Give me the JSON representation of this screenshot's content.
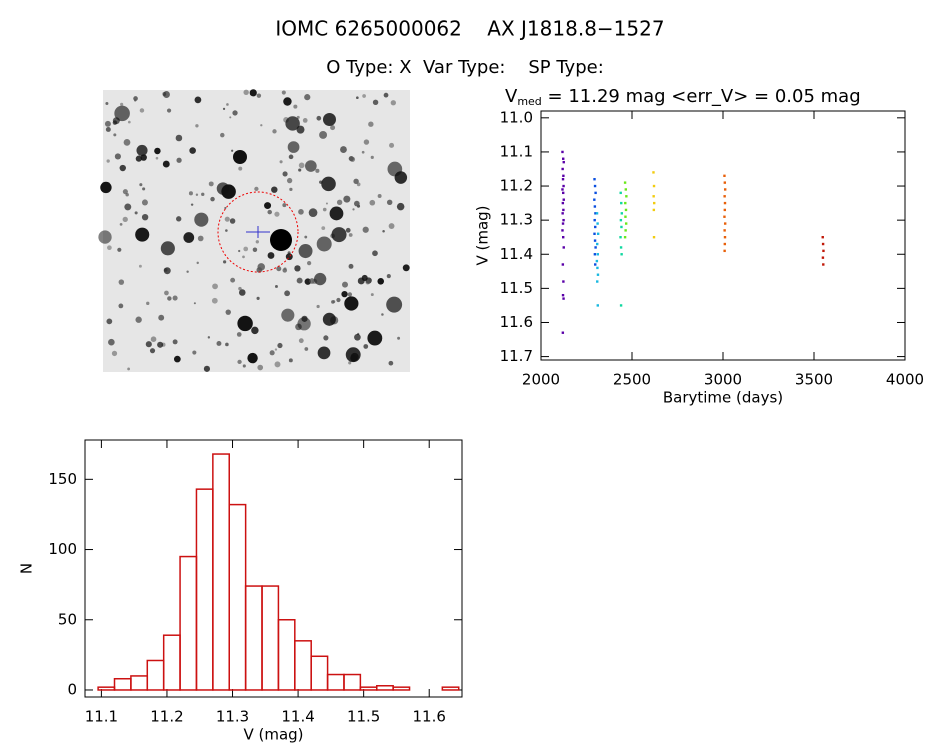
{
  "header": {
    "title": "IOMC 6265000062    AX J1818.8−1527",
    "subtitle": "O Type: X  Var Type:    SP Type:"
  },
  "chart_data": [
    {
      "type": "scatter",
      "title_parts": [
        "V",
        "med",
        " = 11.29 mag <err_V> = 0.05 mag"
      ],
      "xlabel": "Barytime (days)",
      "ylabel": "V (mag)",
      "xlim": [
        2000,
        4000
      ],
      "xticks": [
        2000,
        2500,
        3000,
        3500,
        4000
      ],
      "ylim": [
        11.71,
        10.98
      ],
      "yticks": [
        {
          "value": 11.0,
          "label": "11.0"
        },
        11.1,
        11.2,
        11.3,
        11.4,
        11.5,
        11.6,
        11.7
      ],
      "series": [
        {
          "color": "#5a00a8",
          "x": [
            2118,
            2122,
            2125,
            2119,
            2123,
            2121,
            2124,
            2118,
            2122,
            2125,
            2120,
            2123,
            2119,
            2124,
            2121,
            2118,
            2122,
            2125,
            2120,
            2123,
            2121,
            2124,
            2120
          ],
          "values": [
            11.1,
            11.12,
            11.13,
            11.15,
            11.17,
            11.18,
            11.2,
            11.21,
            11.22,
            11.24,
            11.25,
            11.27,
            11.28,
            11.3,
            11.31,
            11.33,
            11.35,
            11.38,
            11.43,
            11.48,
            11.52,
            11.53,
            11.63
          ]
        },
        {
          "color": "#0a4fe0",
          "x": [
            2294,
            2297,
            2300,
            2293,
            2296,
            2299,
            2295,
            2298,
            2294,
            2297,
            2300,
            2296,
            2298
          ],
          "values": [
            11.18,
            11.2,
            11.22,
            11.24,
            11.26,
            11.28,
            11.3,
            11.32,
            11.34,
            11.36,
            11.38,
            11.4,
            11.43
          ]
        },
        {
          "color": "#18b8e0",
          "x": [
            2308,
            2311,
            2314,
            2309,
            2312,
            2307,
            2310,
            2313,
            2309,
            2312
          ],
          "values": [
            11.28,
            11.31,
            11.34,
            11.37,
            11.4,
            11.42,
            11.44,
            11.46,
            11.48,
            11.55
          ]
        },
        {
          "color": "#10d8a0",
          "x": [
            2438,
            2441,
            2444,
            2439,
            2442,
            2437,
            2440,
            2443,
            2440
          ],
          "values": [
            11.22,
            11.25,
            11.28,
            11.3,
            11.32,
            11.35,
            11.38,
            11.4,
            11.55
          ]
        },
        {
          "color": "#6ae81a",
          "x": [
            2462,
            2466,
            2469,
            2463,
            2467,
            2464,
            2468,
            2465,
            2462
          ],
          "values": [
            11.19,
            11.21,
            11.23,
            11.25,
            11.27,
            11.29,
            11.31,
            11.33,
            11.35
          ]
        },
        {
          "color": "#f2cc10",
          "x": [
            2618,
            2621,
            2619,
            2622,
            2620,
            2621
          ],
          "values": [
            11.16,
            11.2,
            11.23,
            11.25,
            11.27,
            11.35
          ]
        },
        {
          "color": "#e8600a",
          "x": [
            3008,
            3010,
            3012,
            3009,
            3011,
            3010,
            3008,
            3012,
            3009,
            3011,
            3010,
            3009
          ],
          "values": [
            11.17,
            11.19,
            11.21,
            11.23,
            11.25,
            11.27,
            11.29,
            11.31,
            11.33,
            11.35,
            11.37,
            11.39
          ]
        },
        {
          "color": "#c01808",
          "x": [
            3548,
            3550,
            3552,
            3549,
            3551
          ],
          "values": [
            11.35,
            11.37,
            11.39,
            11.41,
            11.43
          ]
        }
      ]
    },
    {
      "type": "histogram",
      "xlabel": "V (mag)",
      "ylabel": "N",
      "color": "#cc1111",
      "xlim": [
        11.075,
        11.65
      ],
      "xticks": [
        11.1,
        11.2,
        11.3,
        11.4,
        11.5,
        11.6
      ],
      "ylim": [
        -5,
        178
      ],
      "yticks": [
        0,
        50,
        100,
        150
      ],
      "bins": [
        11.095,
        11.12,
        11.145,
        11.17,
        11.195,
        11.22,
        11.245,
        11.27,
        11.295,
        11.32,
        11.345,
        11.37,
        11.395,
        11.42,
        11.445,
        11.47,
        11.495,
        11.52,
        11.545,
        11.57,
        11.595,
        11.62,
        11.645
      ],
      "values": [
        2,
        8,
        10,
        21,
        39,
        95,
        143,
        168,
        132,
        74,
        74,
        50,
        35,
        24,
        11,
        11,
        2,
        3,
        2,
        0,
        0,
        2
      ]
    }
  ]
}
